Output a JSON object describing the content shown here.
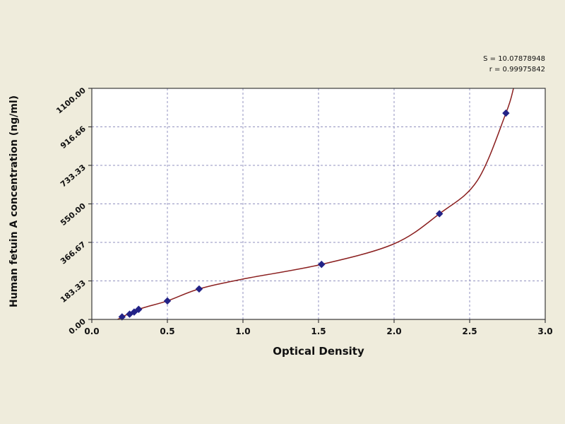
{
  "figure": {
    "background_color": "#efecdc"
  },
  "chart_data": {
    "type": "scatter",
    "title": "",
    "xlabel": "Optical Density",
    "ylabel": "Human fetuin A concentration (ng/ml)",
    "xlim": [
      0.0,
      3.0
    ],
    "ylim": [
      0,
      1100
    ],
    "x_ticks": [
      "0.0",
      "0.5",
      "1.0",
      "1.5",
      "2.0",
      "2.5",
      "3.0"
    ],
    "y_ticks": [
      "0.00",
      "183.33",
      "366.67",
      "550.00",
      "733.33",
      "916.66",
      "1100.00"
    ],
    "annotations": {
      "s_value": "S = 10.07878948",
      "r_value": "r = 0.99975842"
    },
    "grid": true,
    "legend": false,
    "points": [
      [
        0.2,
        12
      ],
      [
        0.25,
        25
      ],
      [
        0.28,
        35
      ],
      [
        0.31,
        48
      ],
      [
        0.5,
        88
      ],
      [
        0.71,
        145
      ],
      [
        1.52,
        262
      ],
      [
        2.3,
        503
      ],
      [
        2.74,
        982
      ]
    ],
    "curve_points": [
      [
        0.17,
        0
      ],
      [
        0.31,
        48
      ],
      [
        0.5,
        88
      ],
      [
        0.71,
        145
      ],
      [
        1.0,
        192
      ],
      [
        1.52,
        262
      ],
      [
        2.0,
        360
      ],
      [
        2.3,
        503
      ],
      [
        2.55,
        660
      ],
      [
        2.74,
        982
      ],
      [
        2.79,
        1100
      ]
    ],
    "colors": {
      "curve": "#8b2020",
      "points": "#232387",
      "grid": "#9191bf",
      "frame": "#3a3a3a",
      "plot_bg": "#ffffff",
      "text": "#111111"
    }
  }
}
